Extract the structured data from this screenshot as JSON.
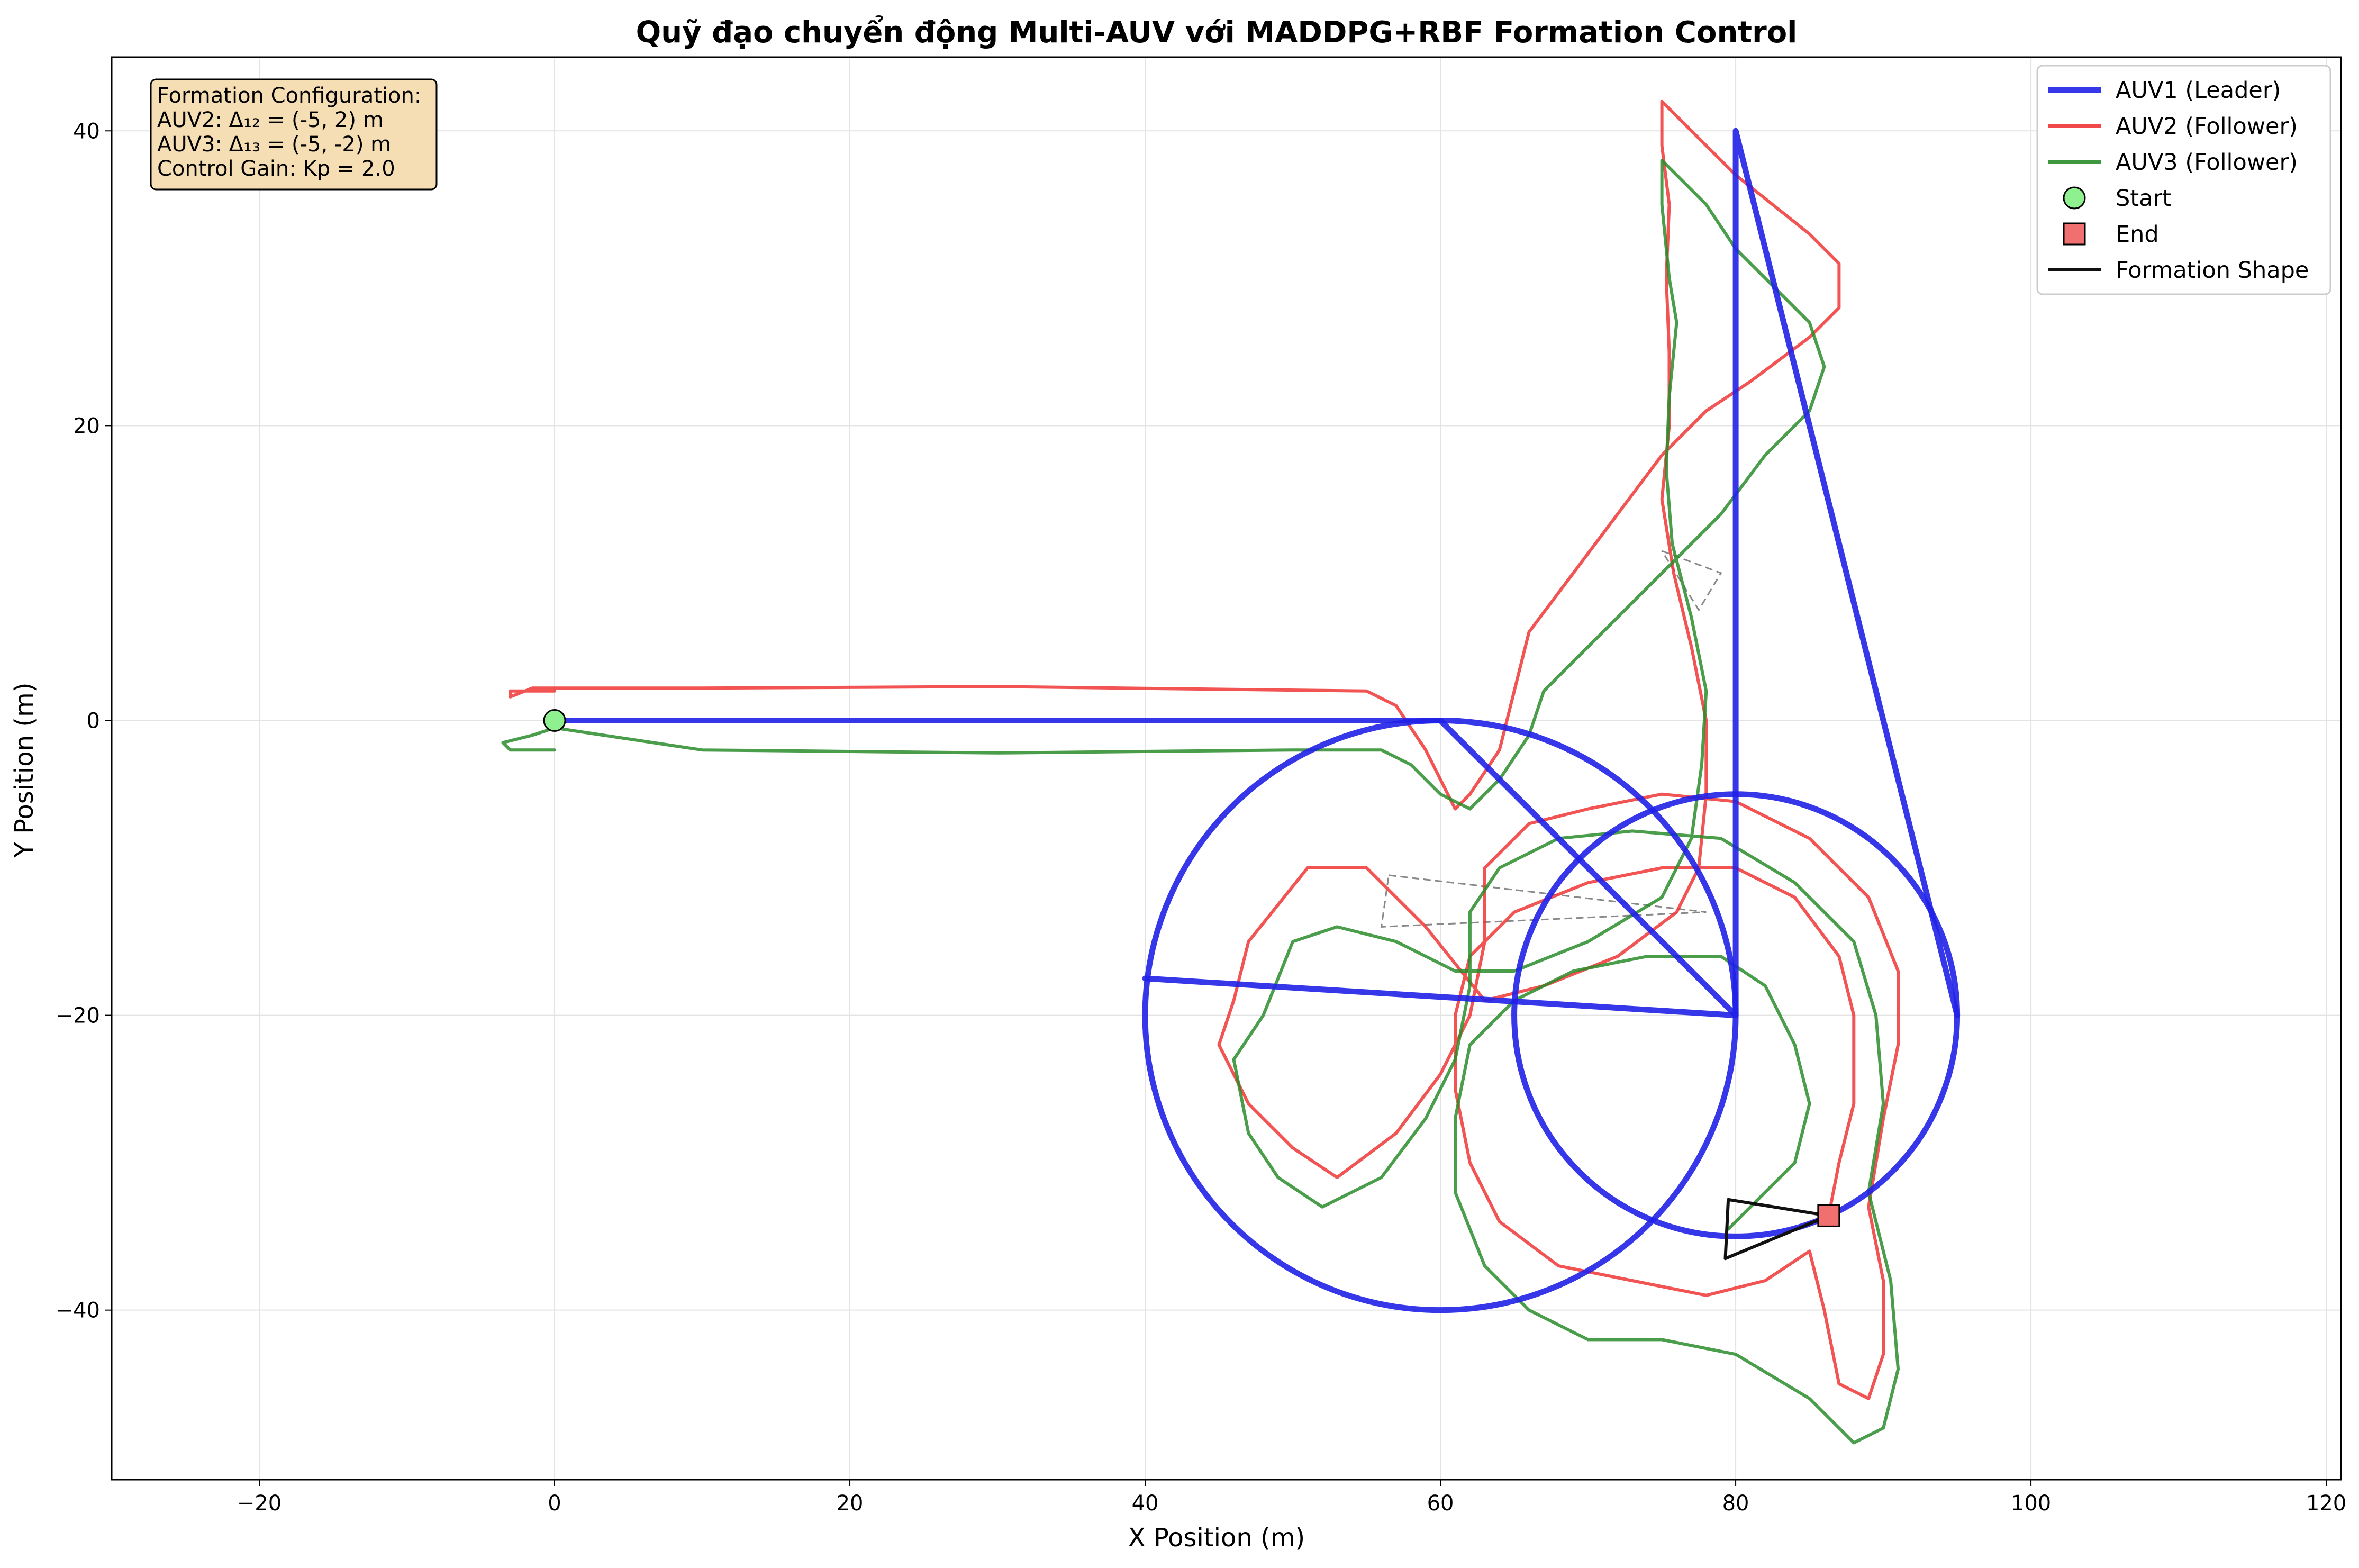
{
  "chart_data": {
    "type": "line",
    "title": "Quỹ đạo chuyển động Multi-AUV với MADDPG+RBF Formation Control",
    "xlabel": "X Position (m)",
    "ylabel": "Y Position (m)",
    "xlim": [
      -30,
      121
    ],
    "ylim": [
      -51.5,
      45
    ],
    "grid": true,
    "legend_position": "top-right",
    "x_ticks": [
      -20,
      0,
      20,
      40,
      60,
      80,
      100,
      120
    ],
    "y_ticks": [
      -40,
      -20,
      0,
      20,
      40
    ],
    "x_tick_labels": [
      "−20",
      "0",
      "20",
      "40",
      "60",
      "80",
      "100",
      "120"
    ],
    "y_tick_labels": [
      "−40",
      "−20",
      "0",
      "20",
      "40"
    ],
    "legend": [
      {
        "label": "AUV1 (Leader)",
        "kind": "line",
        "color": "#2121e8"
      },
      {
        "label": "AUV2 (Follower)",
        "kind": "line",
        "color": "#f03535"
      },
      {
        "label": "AUV3 (Follower)",
        "kind": "line",
        "color": "#2a8c2a"
      },
      {
        "label": "Start",
        "kind": "circle",
        "color": "#8ef08e"
      },
      {
        "label": "End",
        "kind": "square",
        "color": "#f07070"
      },
      {
        "label": "Formation Shape",
        "kind": "line",
        "color": "#111111"
      }
    ],
    "info_box": [
      "Formation Configuration:",
      "AUV2: Δ₁₂ = (-5, 2) m",
      "AUV3: Δ₁₃ = (-5, -2) m",
      "Control Gain: Kp = 2.0"
    ],
    "series": [
      {
        "name": "AUV1 (Leader)",
        "color": "#2121e8",
        "segments": [
          {
            "kind": "line",
            "points": [
              [
                0,
                0
              ],
              [
                60,
                0
              ]
            ]
          },
          {
            "kind": "circle",
            "center": [
              60,
              -20
            ],
            "radius": 20,
            "start_deg": 90,
            "sweep_deg": 360
          },
          {
            "kind": "line",
            "points": [
              [
                60,
                0
              ],
              [
                80,
                -20
              ],
              [
                80,
                40
              ],
              [
                95,
                -20
              ]
            ]
          },
          {
            "kind": "circle",
            "center": [
              80,
              -20
            ],
            "radius": 15,
            "start_deg": 0,
            "sweep_deg": 360
          },
          {
            "kind": "line",
            "points": [
              [
                80,
                -20
              ],
              [
                40,
                -17.5
              ]
            ]
          }
        ]
      },
      {
        "name": "AUV2 (Follower)",
        "color": "#f03535",
        "points": [
          [
            0,
            2
          ],
          [
            -3,
            2
          ],
          [
            -3,
            1.6
          ],
          [
            -1.5,
            2.2
          ],
          [
            10,
            2.2
          ],
          [
            30,
            2.3
          ],
          [
            55,
            2
          ],
          [
            57,
            1
          ],
          [
            59,
            -2
          ],
          [
            61,
            -6
          ],
          [
            62,
            -5
          ],
          [
            64,
            -2
          ],
          [
            65,
            2
          ],
          [
            66,
            6
          ],
          [
            69,
            10
          ],
          [
            72,
            14
          ],
          [
            75,
            18
          ],
          [
            78,
            21
          ],
          [
            81,
            23
          ],
          [
            85,
            26
          ],
          [
            87,
            28
          ],
          [
            87,
            31
          ],
          [
            85,
            33
          ],
          [
            80,
            37
          ],
          [
            76,
            41
          ],
          [
            75,
            42
          ],
          [
            75,
            39
          ],
          [
            75.5,
            35
          ],
          [
            75.3,
            30
          ],
          [
            75.5,
            25
          ],
          [
            75.5,
            20
          ],
          [
            75,
            15
          ],
          [
            75.8,
            10
          ],
          [
            77,
            5
          ],
          [
            78,
            0
          ],
          [
            78,
            -5
          ],
          [
            77.5,
            -10
          ],
          [
            76,
            -13
          ],
          [
            72,
            -16
          ],
          [
            67,
            -18
          ],
          [
            63,
            -19
          ],
          [
            59,
            -14
          ],
          [
            55,
            -10
          ],
          [
            51,
            -10
          ],
          [
            47,
            -15
          ],
          [
            46,
            -19
          ],
          [
            45,
            -22
          ],
          [
            47,
            -26
          ],
          [
            50,
            -29
          ],
          [
            53,
            -31
          ],
          [
            57,
            -28
          ],
          [
            60,
            -24
          ],
          [
            62,
            -20
          ],
          [
            63,
            -15
          ],
          [
            63,
            -10
          ],
          [
            66,
            -7
          ],
          [
            70,
            -6
          ],
          [
            75,
            -5
          ],
          [
            80,
            -5.5
          ],
          [
            85,
            -8
          ],
          [
            89,
            -12
          ],
          [
            91,
            -17
          ],
          [
            91,
            -22
          ],
          [
            90,
            -27
          ],
          [
            89,
            -33
          ],
          [
            90,
            -38
          ],
          [
            90,
            -43
          ],
          [
            89,
            -46
          ],
          [
            87,
            -45
          ],
          [
            86,
            -40
          ],
          [
            85,
            -36
          ],
          [
            82,
            -38
          ],
          [
            78,
            -39
          ],
          [
            73,
            -38
          ],
          [
            68,
            -37
          ],
          [
            64,
            -34
          ],
          [
            62,
            -30
          ],
          [
            61,
            -25
          ],
          [
            61,
            -20
          ],
          [
            62,
            -16
          ],
          [
            65,
            -13
          ],
          [
            70,
            -11
          ],
          [
            75,
            -10
          ],
          [
            80,
            -10
          ],
          [
            84,
            -12
          ],
          [
            87,
            -16
          ],
          [
            88,
            -20
          ],
          [
            88,
            -26
          ],
          [
            87,
            -30
          ],
          [
            86.3,
            -33.6
          ]
        ]
      },
      {
        "name": "AUV3 (Follower)",
        "color": "#2a8c2a",
        "points": [
          [
            0,
            -2
          ],
          [
            -3,
            -2
          ],
          [
            -3.5,
            -1.5
          ],
          [
            -1.5,
            -1
          ],
          [
            0,
            -0.5
          ],
          [
            10,
            -2
          ],
          [
            30,
            -2.2
          ],
          [
            50,
            -2
          ],
          [
            56,
            -2
          ],
          [
            58,
            -3
          ],
          [
            60,
            -5
          ],
          [
            62,
            -6
          ],
          [
            64,
            -4
          ],
          [
            66,
            -1
          ],
          [
            67,
            2
          ],
          [
            70,
            5
          ],
          [
            73,
            8
          ],
          [
            76,
            11
          ],
          [
            79,
            14
          ],
          [
            82,
            18
          ],
          [
            85,
            21
          ],
          [
            86,
            24
          ],
          [
            85,
            27
          ],
          [
            83,
            29
          ],
          [
            80,
            32
          ],
          [
            78,
            35
          ],
          [
            76,
            37
          ],
          [
            75,
            38
          ],
          [
            75,
            35
          ],
          [
            75.5,
            30
          ],
          [
            76,
            27
          ],
          [
            75.5,
            22
          ],
          [
            75.3,
            17
          ],
          [
            75.7,
            12
          ],
          [
            77,
            7
          ],
          [
            78,
            2
          ],
          [
            77.7,
            -3
          ],
          [
            77,
            -8
          ],
          [
            75,
            -12
          ],
          [
            70,
            -15
          ],
          [
            65,
            -17
          ],
          [
            61,
            -17
          ],
          [
            57,
            -15
          ],
          [
            53,
            -14
          ],
          [
            50,
            -15
          ],
          [
            48,
            -20
          ],
          [
            46,
            -23
          ],
          [
            47,
            -28
          ],
          [
            49,
            -31
          ],
          [
            52,
            -33
          ],
          [
            56,
            -31
          ],
          [
            59,
            -27
          ],
          [
            61,
            -23
          ],
          [
            62,
            -18
          ],
          [
            62,
            -13
          ],
          [
            64,
            -10
          ],
          [
            68,
            -8
          ],
          [
            73,
            -7.5
          ],
          [
            79,
            -8
          ],
          [
            84,
            -11
          ],
          [
            88,
            -15
          ],
          [
            89.5,
            -20
          ],
          [
            90,
            -26
          ],
          [
            89,
            -32
          ],
          [
            90.5,
            -38
          ],
          [
            91,
            -44
          ],
          [
            90,
            -48
          ],
          [
            88,
            -49
          ],
          [
            85,
            -46
          ],
          [
            80,
            -43
          ],
          [
            75,
            -42
          ],
          [
            70,
            -42
          ],
          [
            66,
            -40
          ],
          [
            63,
            -37
          ],
          [
            61,
            -32
          ],
          [
            61,
            -27
          ],
          [
            62,
            -22
          ],
          [
            65,
            -19
          ],
          [
            69,
            -17
          ],
          [
            74,
            -16
          ],
          [
            79,
            -16
          ],
          [
            82,
            -18
          ],
          [
            84,
            -22
          ],
          [
            85,
            -26
          ],
          [
            84,
            -30
          ],
          [
            82,
            -32
          ],
          [
            79.5,
            -34.5
          ]
        ]
      }
    ],
    "formation_shape": {
      "color": "#111111",
      "points": [
        [
          86.3,
          -33.6
        ],
        [
          79.5,
          -32.5
        ],
        [
          79.3,
          -36.5
        ],
        [
          86.3,
          -33.6
        ]
      ]
    },
    "formation_snapshots": [
      [
        [
          56.5,
          -10.5
        ],
        [
          78,
          -13
        ],
        [
          56,
          -14
        ]
      ],
      [
        [
          75,
          11.5
        ],
        [
          79,
          10
        ],
        [
          77.5,
          7.5
        ]
      ]
    ],
    "start_marker": {
      "x": 0,
      "y": 0
    },
    "end_marker": {
      "x": 86.3,
      "y": -33.6
    }
  }
}
